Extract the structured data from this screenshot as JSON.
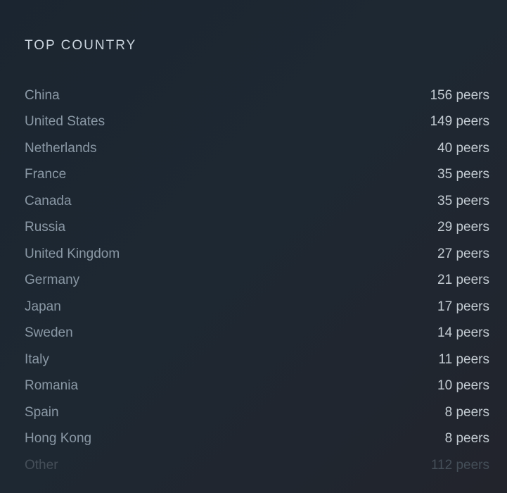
{
  "panel": {
    "title": "TOP COUNTRY"
  },
  "countries": [
    {
      "name": "China",
      "peers": "156 peers"
    },
    {
      "name": "United States",
      "peers": "149 peers"
    },
    {
      "name": "Netherlands",
      "peers": "40 peers"
    },
    {
      "name": "France",
      "peers": "35 peers"
    },
    {
      "name": "Canada",
      "peers": "35 peers"
    },
    {
      "name": "Russia",
      "peers": "29 peers"
    },
    {
      "name": "United Kingdom",
      "peers": "27 peers"
    },
    {
      "name": "Germany",
      "peers": "21 peers"
    },
    {
      "name": "Japan",
      "peers": "17 peers"
    },
    {
      "name": "Sweden",
      "peers": "14 peers"
    },
    {
      "name": "Italy",
      "peers": "11 peers"
    },
    {
      "name": "Romania",
      "peers": "10 peers"
    },
    {
      "name": "Spain",
      "peers": "8 peers"
    },
    {
      "name": "Hong Kong",
      "peers": "8 peers"
    },
    {
      "name": "Other",
      "peers": "112 peers"
    }
  ],
  "colors": {
    "title": "#c9d3dc",
    "country_name": "#8a98a5",
    "peer_count": "#c4ccd3",
    "muted": "#454f59"
  }
}
